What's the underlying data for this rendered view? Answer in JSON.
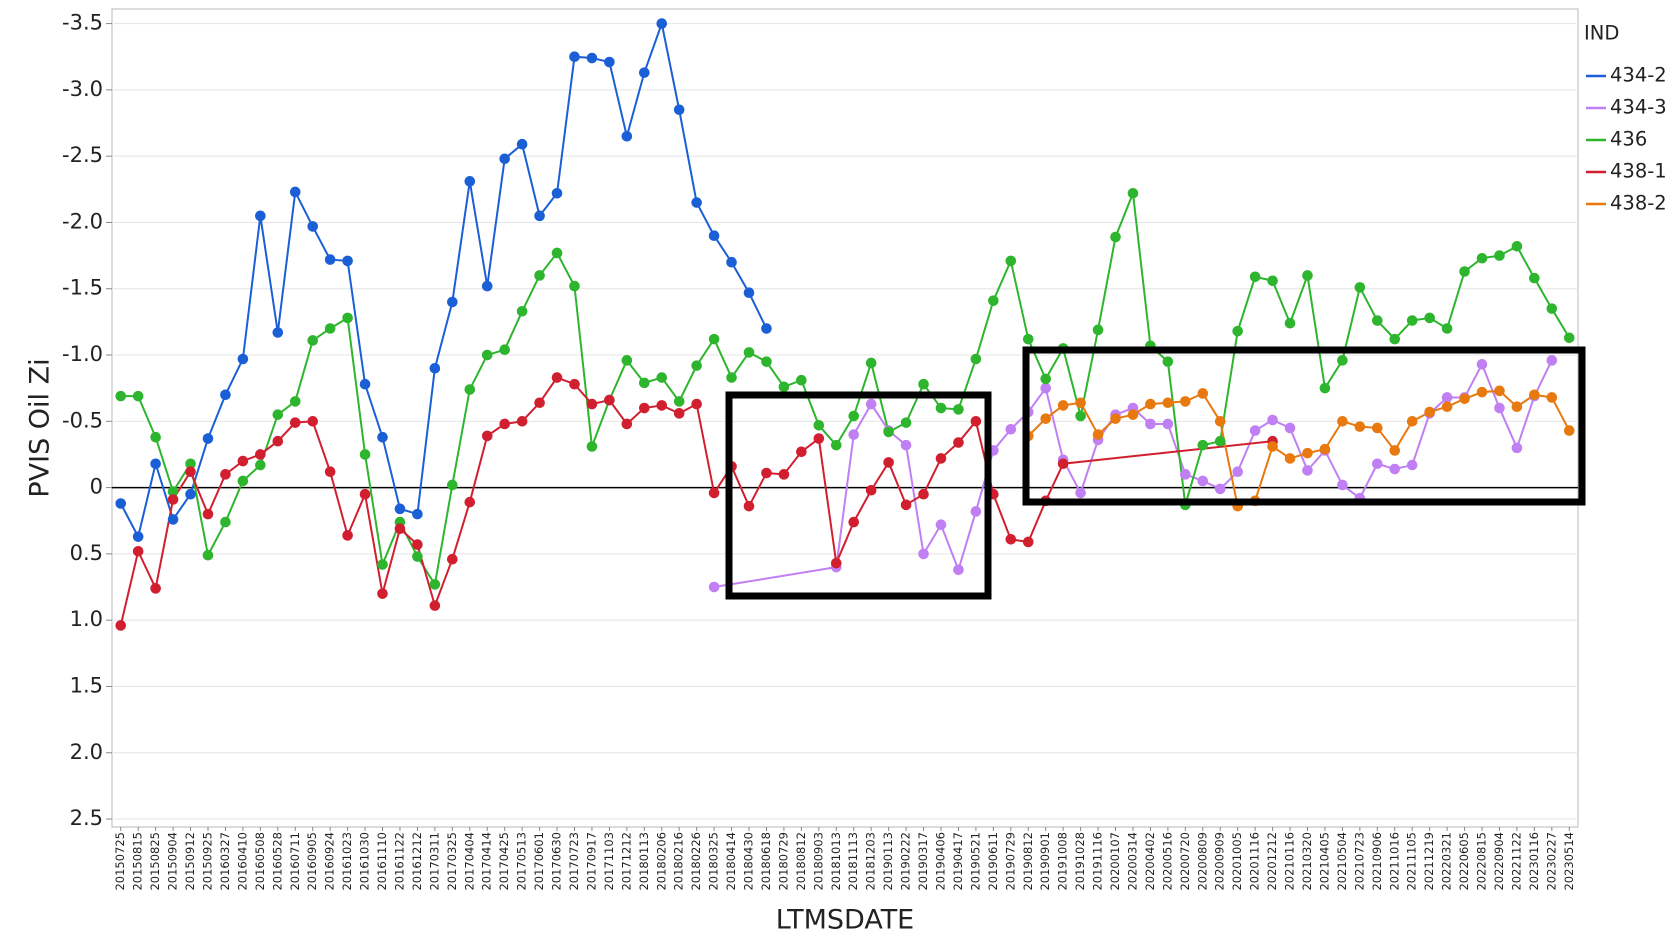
{
  "chart_data": {
    "type": "line",
    "y_label": "PVIS Oil Zi",
    "x_label": "LTMSDATE",
    "legend_title": "IND",
    "legend": "right",
    "grid": true,
    "ylim": [
      2.56,
      -3.61
    ],
    "yticks": [
      -3.5,
      {
        "value": -3,
        "label": "-3.0"
      },
      -2.5,
      {
        "value": -2,
        "label": "-2.0"
      },
      -1.5,
      {
        "value": -1,
        "label": "-1.0"
      },
      -0.5,
      0,
      0.5,
      {
        "value": 1,
        "label": "1.0"
      },
      1.5,
      {
        "value": 2,
        "label": "2.0"
      },
      2.5
    ],
    "categories": [
      "20150725",
      "20150815",
      "20150825",
      "20150904",
      "20150912",
      "20150925",
      "20160327",
      "20160410",
      "20160508",
      "20160528",
      "20160711",
      "20160905",
      "20160924",
      "20161023",
      "20161030",
      "20161110",
      "20161122",
      "20161212",
      "20170311",
      "20170325",
      "20170404",
      "20170414",
      "20170425",
      "20170513",
      "20170601",
      "20170630",
      "20170723",
      "20170917",
      "20171103",
      "20171212",
      "20180113",
      "20180206",
      "20180216",
      "20180226",
      "20180325",
      "20180414",
      "20180430",
      "20180618",
      "20180729",
      "20180812",
      "20180903",
      "20181013",
      "20181113",
      "20181203",
      "20190113",
      "20190222",
      "20190317",
      "20190406",
      "20190417",
      "20190521",
      "20190611",
      "20190729",
      "20190812",
      "20190901",
      "20191008",
      "20191028",
      "20191116",
      "20200107",
      "20200314",
      "20200402",
      "20200516",
      "20200720",
      "20200809",
      "20200909",
      "20201005",
      "20201116",
      "20201212",
      "20210116",
      "20210320",
      "20210405",
      "20210504",
      "20210723",
      "20210906",
      "20211016",
      "20211105",
      "20211219",
      "20220321",
      "20220605",
      "20220815",
      "20220904",
      "20221122",
      "20230116",
      "20230227",
      "20230514"
    ],
    "series": [
      {
        "name": "434-2",
        "color": "#1a5fd6",
        "values": [
          0.12,
          0.37,
          -0.18,
          0.24,
          0.05,
          -0.37,
          -0.7,
          -0.97,
          -2.05,
          -1.17,
          -2.23,
          -1.97,
          -1.72,
          -1.71,
          -0.78,
          -0.38,
          0.16,
          0.2,
          -0.9,
          -1.4,
          -2.31,
          -1.52,
          -2.48,
          -2.59,
          -2.05,
          -2.22,
          -3.25,
          -3.24,
          -3.21,
          -2.65,
          -3.13,
          -3.5,
          -2.85,
          -2.15,
          -1.9,
          -1.7,
          -1.47,
          -1.2,
          null,
          null,
          null,
          null,
          null,
          null,
          null,
          null,
          null,
          null,
          null,
          null,
          null,
          null,
          null,
          null,
          null,
          null,
          null,
          null,
          null,
          null,
          null,
          null,
          null,
          null,
          null,
          null,
          null,
          null,
          null,
          null,
          null,
          null,
          null,
          null,
          null,
          null,
          null,
          null,
          null,
          null,
          null,
          null,
          null,
          null
        ]
      },
      {
        "name": "434-3",
        "color": "#c07ff3",
        "x": [
          "20180325",
          "20181013",
          "20181113",
          "20181203",
          "20190113",
          "20190222",
          "20190317",
          "20190406",
          "20190417",
          "20190521",
          "20190611",
          "20190729",
          "20190812",
          "20190901",
          "20191008",
          "20191028",
          "20191116",
          "20200107",
          "20200314",
          "20200402",
          "20200516",
          "20200720",
          "20200809",
          "20200909",
          "20201005",
          "20201116",
          "20201212",
          "20210116",
          "20210320",
          "20210405",
          "20210504",
          "20210723",
          "20210906",
          "20211016",
          "20211105",
          "20211219",
          "20220321",
          "20220605",
          "20220815",
          "20220904",
          "20221122",
          "20230116",
          "20230227"
        ],
        "values": [
          0.75,
          0.6,
          -0.4,
          -0.63,
          -0.43,
          -0.32,
          0.5,
          0.28,
          0.62,
          0.18,
          -0.28,
          -0.44,
          -0.57,
          -0.75,
          -0.21,
          0.04,
          -0.36,
          -0.55,
          -0.6,
          -0.48,
          -0.48,
          -0.1,
          -0.05,
          0.01,
          -0.12,
          -0.43,
          -0.51,
          -0.45,
          -0.13,
          -0.28,
          -0.02,
          0.08,
          -0.18,
          -0.14,
          -0.17,
          -0.56,
          -0.68,
          -0.68,
          -0.93,
          -0.6,
          -0.3,
          -0.69,
          -0.96
        ]
      },
      {
        "name": "436",
        "color": "#2eb52e",
        "values": [
          -0.69,
          -0.69,
          -0.38,
          0.03,
          -0.18,
          0.51,
          0.26,
          -0.05,
          -0.17,
          -0.55,
          -0.65,
          -1.11,
          -1.2,
          -1.28,
          -0.25,
          0.58,
          0.26,
          0.52,
          0.73,
          -0.02,
          -0.74,
          -1.0,
          -1.04,
          -1.33,
          -1.6,
          -1.77,
          -1.52,
          -0.31,
          -0.66,
          -0.96,
          -0.79,
          -0.83,
          -0.65,
          -0.92,
          -1.12,
          -0.83,
          -1.02,
          -0.95,
          -0.76,
          -0.81,
          -0.47,
          -0.32,
          -0.54,
          -0.94,
          -0.42,
          -0.49,
          -0.78,
          -0.6,
          -0.59,
          -0.97,
          -1.41,
          -1.71,
          -1.12,
          -0.82,
          -1.05,
          -0.54,
          -1.19,
          -1.89,
          -2.22,
          -1.07,
          -0.95,
          0.13,
          -0.32,
          -0.35,
          -1.18,
          -1.59,
          -1.56,
          -1.24,
          -1.6,
          -0.75,
          -0.96,
          -1.51,
          -1.26,
          -1.12,
          -1.26,
          -1.28,
          -1.2,
          -1.63,
          -1.73,
          -1.75,
          -1.82,
          -1.58,
          -1.35,
          -1.13
        ]
      },
      {
        "name": "438-1",
        "color": "#d11f30",
        "x": [
          "20150725",
          "20150815",
          "20150825",
          "20150904",
          "20150912",
          "20150925",
          "20160327",
          "20160410",
          "20160508",
          "20160528",
          "20160711",
          "20160905",
          "20160924",
          "20161023",
          "20161030",
          "20161110",
          "20161122",
          "20161212",
          "20170311",
          "20170325",
          "20170404",
          "20170414",
          "20170425",
          "20170513",
          "20170601",
          "20170630",
          "20170723",
          "20170917",
          "20171103",
          "20171212",
          "20180113",
          "20180206",
          "20180216",
          "20180226",
          "20180325",
          "20180414",
          "20180430",
          "20180618",
          "20180729",
          "20180812",
          "20180903",
          "20181013",
          "20181113",
          "20181203",
          "20190113",
          "20190222",
          "20190317",
          "20190406",
          "20190417",
          "20190521",
          "20190611",
          "20190729",
          "20190812",
          "20190901",
          "20191008",
          "20201212"
        ],
        "values": [
          1.04,
          0.48,
          0.76,
          0.09,
          -0.12,
          0.2,
          -0.1,
          -0.2,
          -0.25,
          -0.35,
          -0.49,
          -0.5,
          -0.12,
          0.36,
          0.05,
          0.8,
          0.31,
          0.43,
          0.89,
          0.54,
          0.11,
          -0.39,
          -0.48,
          -0.5,
          -0.64,
          -0.83,
          -0.78,
          -0.63,
          -0.66,
          -0.48,
          -0.6,
          -0.62,
          -0.56,
          -0.63,
          0.04,
          -0.16,
          0.14,
          -0.11,
          -0.1,
          -0.27,
          -0.37,
          0.57,
          0.26,
          0.02,
          -0.19,
          0.13,
          0.05,
          -0.22,
          -0.34,
          -0.5,
          0.05,
          0.39,
          0.41,
          0.1,
          -0.18,
          -0.35
        ]
      },
      {
        "name": "438-2",
        "color": "#e8790f",
        "values": [
          null,
          null,
          null,
          null,
          null,
          null,
          null,
          null,
          null,
          null,
          null,
          null,
          null,
          null,
          null,
          null,
          null,
          null,
          null,
          null,
          null,
          null,
          null,
          null,
          null,
          null,
          null,
          null,
          null,
          null,
          null,
          null,
          null,
          null,
          null,
          null,
          null,
          null,
          null,
          null,
          null,
          null,
          null,
          null,
          null,
          null,
          null,
          null,
          null,
          null,
          null,
          null,
          -0.39,
          -0.52,
          -0.62,
          -0.64,
          -0.4,
          -0.52,
          -0.55,
          -0.63,
          -0.64,
          -0.65,
          -0.71,
          -0.5,
          0.14,
          0.1,
          -0.31,
          -0.22,
          -0.26,
          -0.29,
          -0.5,
          -0.46,
          -0.45,
          -0.28,
          -0.5,
          -0.57,
          -0.61,
          -0.67,
          -0.72,
          -0.73,
          -0.61,
          -0.7,
          -0.68,
          -0.43
        ]
      }
    ]
  }
}
